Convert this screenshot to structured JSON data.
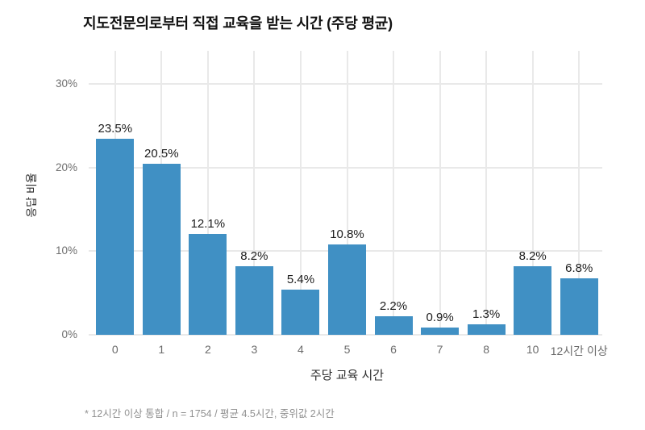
{
  "title": "지도전문의로부터 직접 교육을 받는 시간 (주당 평균)",
  "footnote": "* 12시간 이상 통합 / n = 1754 / 평균 4.5시간, 중위값 2시간",
  "chart_data": {
    "type": "bar",
    "title": "지도전문의로부터 직접 교육을 받는 시간 (주당 평균)",
    "categories": [
      "0",
      "1",
      "2",
      "3",
      "4",
      "5",
      "6",
      "7",
      "8",
      "10",
      "12시간 이상"
    ],
    "values": [
      23.5,
      20.5,
      12.1,
      8.2,
      5.4,
      10.8,
      2.2,
      0.9,
      1.3,
      8.2,
      6.8
    ],
    "value_labels": [
      "23.5%",
      "20.5%",
      "12.1%",
      "8.2%",
      "5.4%",
      "10.8%",
      "2.2%",
      "0.9%",
      "1.3%",
      "8.2%",
      "6.8%"
    ],
    "xlabel": "주당 교육 시간",
    "ylabel": "응답 비율",
    "ylim": [
      0,
      34
    ],
    "yticks": [
      {
        "value": 0,
        "label": "0%"
      },
      {
        "value": 10,
        "label": "10%"
      },
      {
        "value": 20,
        "label": "20%"
      },
      {
        "value": 30,
        "label": "30%"
      }
    ],
    "grid": "horizontal-and-vertical",
    "legend": "none",
    "annotation": "* 12시간 이상 통합 / n = 1754 / 평균 4.5시간, 중위값 2시간"
  },
  "colors": {
    "bar": "#4090c4",
    "grid": "#e9e9e9",
    "title_text": "#111111",
    "value_label_text": "#1c1c1c",
    "tick_text": "#6b6b6b",
    "axis_title_text": "#2e2e2e",
    "footnote_text": "#909090",
    "background": "#ffffff"
  }
}
